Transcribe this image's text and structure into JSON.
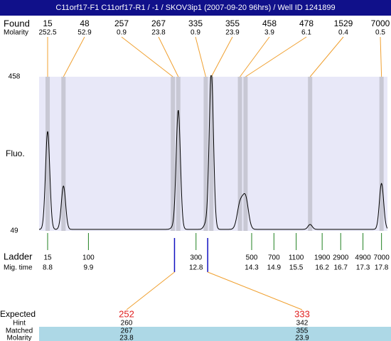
{
  "title": "C11orf17-F1  C11orf17-R1 / -1 / SKOV3ip1 (2007-09-20 96hrs) / Well ID 1241899",
  "found": {
    "label": "Found",
    "sublabel": "Molarity",
    "peaks": [
      {
        "size": 15,
        "molarity": 252.5,
        "height": 313
      },
      {
        "size": 48,
        "molarity": 52.9,
        "height": 168
      },
      {
        "size": 257,
        "molarity": 0.9,
        "height": 58
      },
      {
        "size": 267,
        "molarity": 23.8,
        "height": 369
      },
      {
        "size": 335,
        "molarity": 0.9,
        "height": 66
      },
      {
        "size": 355,
        "molarity": 23.9,
        "height": 470
      },
      {
        "size": 458,
        "molarity": 3.9,
        "height": 118
      },
      {
        "size": 478,
        "molarity": 6.1,
        "height": 135
      },
      {
        "size": 1529,
        "molarity": 0.4,
        "height": 66
      },
      {
        "size": 7000,
        "molarity": 0.5,
        "height": 175
      }
    ]
  },
  "plot": {
    "ylabel": "Fluo.",
    "ylim": [
      49,
      458
    ],
    "yticks": [
      49,
      458
    ],
    "xlim": [
      8.57,
      17.96
    ],
    "baseline": 53
  },
  "ladder": {
    "label": "Ladder",
    "sublabel": "Mig. time",
    "bands": [
      {
        "size": 15,
        "time": 8.8
      },
      {
        "size": 100,
        "time": 9.9
      },
      {
        "size": 300,
        "time": 12.8
      },
      {
        "size": 500,
        "time": 14.3
      },
      {
        "size": 700,
        "time": 14.9
      },
      {
        "size": 1100,
        "time": 15.5
      },
      {
        "size": 1900,
        "time": 16.2
      },
      {
        "size": 2900,
        "time": 16.7
      },
      {
        "size": 4900,
        "time": 17.3
      },
      {
        "size": 7000,
        "time": 17.8
      }
    ]
  },
  "expected": {
    "label": "Expected",
    "rows": [
      "Hint",
      "Matched",
      "Molarity"
    ],
    "items": [
      {
        "size": 252,
        "hint": 260,
        "matched": 267,
        "molarity": 23.8
      },
      {
        "size": 333,
        "hint": 342,
        "matched": 355,
        "molarity": 23.9
      }
    ]
  }
}
